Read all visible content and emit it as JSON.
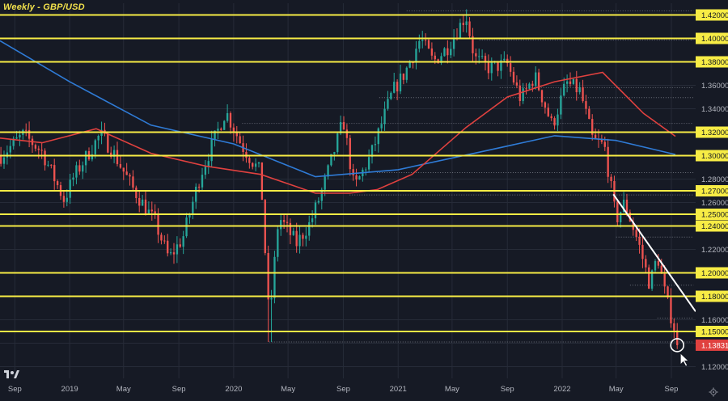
{
  "header": {
    "title": "Weekly - GBP/USD"
  },
  "colors": {
    "background": "#161a25",
    "grid": "#262b38",
    "up": "#26a69a",
    "down": "#ef5350",
    "level": "#f7ec45",
    "ma_fast": "#e0413f",
    "ma_slow": "#2f7bd6",
    "trendline": "#ffffff",
    "axis_text": "#b2b5be",
    "price_tag": "#e0413f"
  },
  "chart_data": {
    "type": "candlestick",
    "symbol": "GBP/USD",
    "timeframe": "Weekly",
    "ylim": [
      1.11,
      1.43
    ],
    "xlim": [
      "2018-07-30",
      "2022-10-25"
    ],
    "y_ticks": [
      "1.42000",
      "1.40000",
      "1.38000",
      "1.36000",
      "1.34000",
      "1.32000",
      "1.30000",
      "1.28000",
      "1.27000",
      "1.26000",
      "1.25000",
      "1.24000",
      "1.22000",
      "1.20000",
      "1.18000",
      "1.16000",
      "1.15000",
      "1.13831",
      "1.12000"
    ],
    "x_ticks": [
      {
        "label": "Sep",
        "date": "2018-09-01"
      },
      {
        "label": "2019",
        "date": "2019-01-01"
      },
      {
        "label": "May",
        "date": "2019-05-01"
      },
      {
        "label": "Sep",
        "date": "2019-09-01"
      },
      {
        "label": "2020",
        "date": "2020-01-01"
      },
      {
        "label": "May",
        "date": "2020-05-01"
      },
      {
        "label": "Sep",
        "date": "2020-09-01"
      },
      {
        "label": "2021",
        "date": "2021-01-01"
      },
      {
        "label": "May",
        "date": "2021-05-01"
      },
      {
        "label": "Sep",
        "date": "2021-09-01"
      },
      {
        "label": "2022",
        "date": "2022-01-01"
      },
      {
        "label": "May",
        "date": "2022-05-01"
      },
      {
        "label": "Sep",
        "date": "2022-09-01"
      }
    ],
    "horizontal_levels": [
      1.42,
      1.4,
      1.38,
      1.32,
      1.3,
      1.27,
      1.25,
      1.24,
      1.2,
      1.18,
      1.15
    ],
    "last_price": 1.13831,
    "trendline": [
      {
        "date": "2022-04-25",
        "price": 1.267
      },
      {
        "date": "2022-10-25",
        "price": 1.167
      }
    ],
    "ma_fast": [
      {
        "date": "2018-07-30",
        "price": 1.315
      },
      {
        "date": "2018-11-01",
        "price": 1.311
      },
      {
        "date": "2019-03-01",
        "price": 1.323
      },
      {
        "date": "2019-07-01",
        "price": 1.302
      },
      {
        "date": "2019-11-01",
        "price": 1.291
      },
      {
        "date": "2020-03-01",
        "price": 1.284
      },
      {
        "date": "2020-07-01",
        "price": 1.268
      },
      {
        "date": "2020-09-15",
        "price": 1.268
      },
      {
        "date": "2020-11-15",
        "price": 1.271
      },
      {
        "date": "2021-02-01",
        "price": 1.284
      },
      {
        "date": "2021-06-01",
        "price": 1.324
      },
      {
        "date": "2021-09-01",
        "price": 1.35
      },
      {
        "date": "2021-12-15",
        "price": 1.363
      },
      {
        "date": "2022-04-01",
        "price": 1.371
      },
      {
        "date": "2022-07-01",
        "price": 1.336
      },
      {
        "date": "2022-09-10",
        "price": 1.3165
      }
    ],
    "ma_slow": [
      {
        "date": "2018-07-30",
        "price": 1.398
      },
      {
        "date": "2019-01-01",
        "price": 1.363
      },
      {
        "date": "2019-07-01",
        "price": 1.326
      },
      {
        "date": "2020-01-01",
        "price": 1.31
      },
      {
        "date": "2020-07-01",
        "price": 1.282
      },
      {
        "date": "2021-01-01",
        "price": 1.288
      },
      {
        "date": "2021-07-01",
        "price": 1.303
      },
      {
        "date": "2021-12-15",
        "price": 1.317
      },
      {
        "date": "2022-05-01",
        "price": 1.313
      },
      {
        "date": "2022-09-10",
        "price": 1.301
      }
    ],
    "candles": []
  }
}
